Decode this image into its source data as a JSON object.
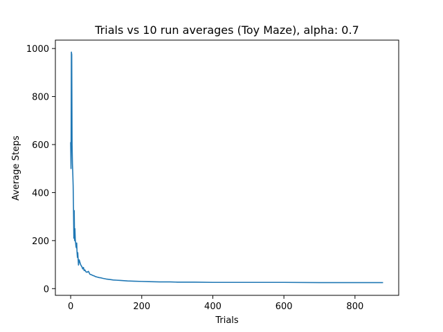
{
  "chart_data": {
    "type": "line",
    "title": "Trials vs 10 run averages (Toy Maze), alpha: 0.7",
    "xlabel": "Trials",
    "ylabel": "Average Steps",
    "xlim": [
      -43,
      923
    ],
    "ylim": [
      -28,
      1035
    ],
    "xticks": [
      0,
      200,
      400,
      600,
      800
    ],
    "yticks": [
      0,
      200,
      400,
      600,
      800,
      1000
    ],
    "grid": false,
    "series": [
      {
        "color": "#1f77b4",
        "x": [
          0,
          1,
          2,
          3,
          4,
          5,
          6,
          7,
          8,
          9,
          10,
          11,
          12,
          13,
          14,
          15,
          16,
          17,
          18,
          19,
          20,
          22,
          24,
          26,
          28,
          30,
          32,
          34,
          36,
          38,
          40,
          43,
          46,
          50,
          54,
          58,
          62,
          66,
          70,
          75,
          80,
          85,
          90,
          100,
          110,
          120,
          130,
          140,
          150,
          160,
          180,
          200,
          220,
          250,
          280,
          300,
          350,
          400,
          450,
          500,
          600,
          700,
          800,
          879
        ],
        "y": [
          610,
          500,
          985,
          975,
          600,
          520,
          480,
          430,
          330,
          210,
          325,
          200,
          250,
          205,
          190,
          175,
          170,
          190,
          150,
          130,
          150,
          98,
          120,
          110,
          100,
          95,
          90,
          82,
          88,
          75,
          78,
          70,
          68,
          72,
          60,
          58,
          55,
          53,
          50,
          48,
          46,
          45,
          43,
          40,
          38,
          36,
          35,
          34,
          33,
          32,
          31,
          30,
          29,
          28,
          28,
          27,
          27,
          26,
          26,
          26,
          26,
          25,
          25,
          25
        ]
      }
    ]
  }
}
